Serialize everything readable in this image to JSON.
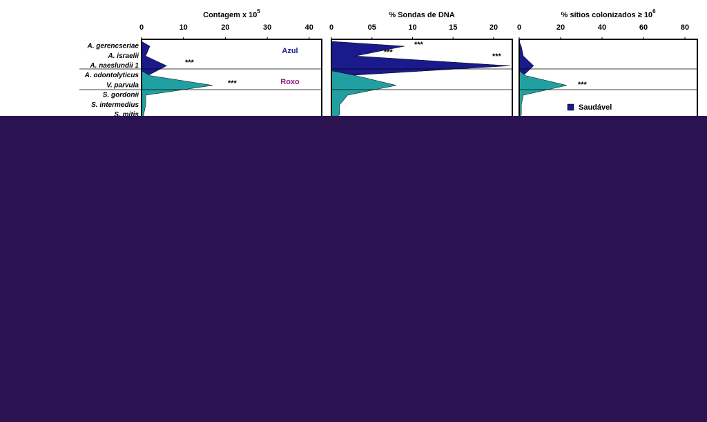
{
  "chart_data": [
    {
      "type": "area",
      "title": "Contagem x 10",
      "title_exp": "5",
      "categories": [
        "A. gerencseriae",
        "A. israelii",
        "A. naeslundii 1",
        "A. odontolyticus",
        "V. parvula",
        "S. gordonii",
        "S. intermedius",
        "S. mitis"
      ],
      "xlim": [
        0,
        43
      ],
      "xticks": [
        0,
        10,
        20,
        30,
        40
      ],
      "series": [
        {
          "name": "Azul",
          "color": "#1a1a8c",
          "values": [
            2,
            1,
            6,
            1.5,
            1,
            0.5,
            0.5,
            0.5
          ]
        },
        {
          "name": "Roxo",
          "color": "#20a0a0",
          "values": [
            null,
            null,
            null,
            2,
            17,
            1,
            1,
            0.5
          ]
        }
      ],
      "annotations": [
        "***",
        "***"
      ]
    },
    {
      "type": "area",
      "title": "% Sondas de DNA",
      "xlim": [
        0,
        22.3
      ],
      "xticks": [
        0,
        {
          "value": 5,
          "label": "05"
        },
        10,
        15,
        20
      ],
      "series": [
        {
          "color": "#1a1a8c",
          "values": [
            9,
            3,
            22,
            2,
            3,
            2,
            1,
            1
          ]
        },
        {
          "color": "#20a0a0",
          "values": [
            null,
            null,
            null,
            3,
            8,
            2,
            1,
            1
          ]
        }
      ],
      "annotations": [
        "***",
        "***",
        "***"
      ]
    },
    {
      "type": "area",
      "title": "% sítios colonizados ≥ 10",
      "title_exp": "6",
      "xlim": [
        0,
        86
      ],
      "xticks": [
        0,
        20,
        40,
        60,
        80
      ],
      "series": [
        {
          "name": "Saudável",
          "color": "#1a1a8c",
          "values": [
            1,
            2,
            7,
            2,
            2,
            1,
            1,
            1
          ]
        },
        {
          "color": "#20a0a0",
          "values": [
            null,
            null,
            null,
            3,
            23,
            2,
            1,
            1
          ]
        }
      ],
      "annotations": [
        "***"
      ]
    }
  ]
}
